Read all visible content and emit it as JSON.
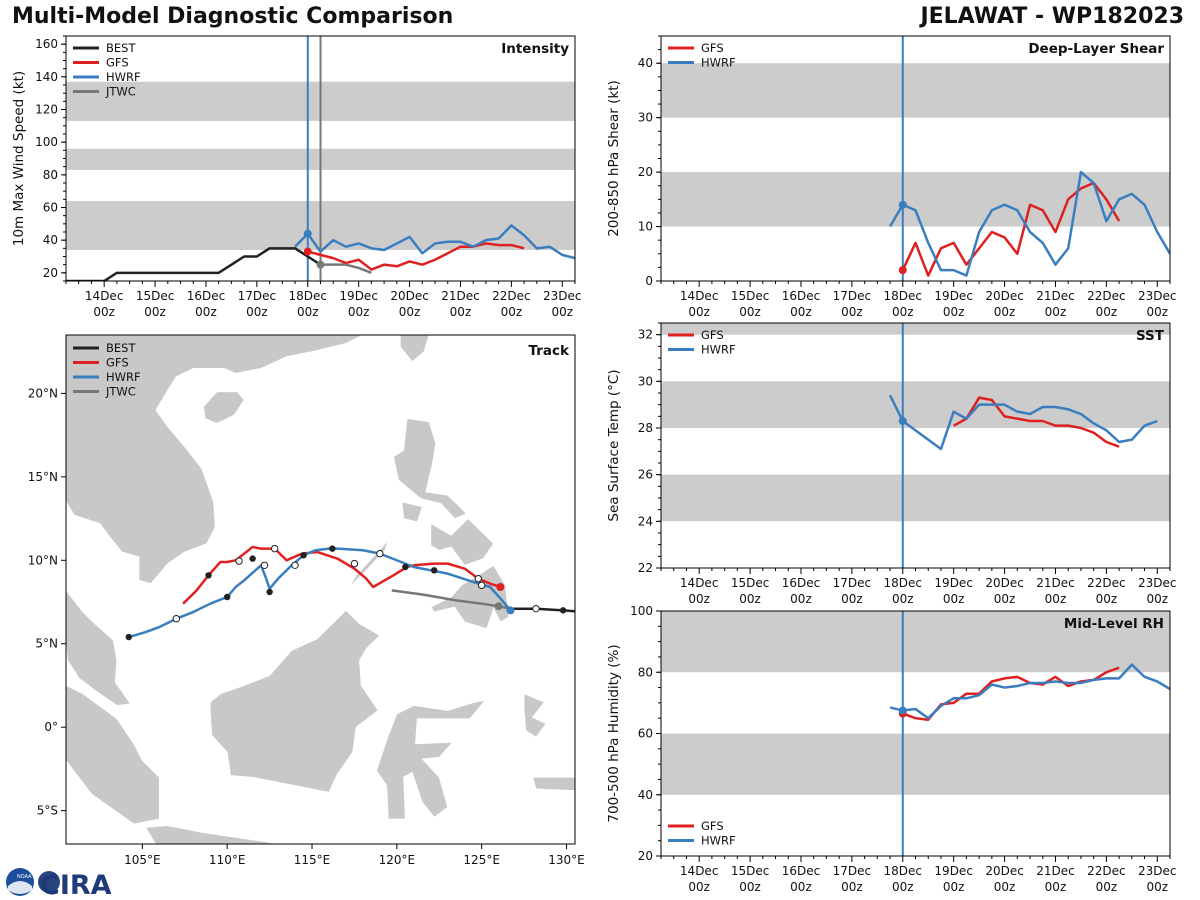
{
  "header": {
    "left_title": "Multi-Model Diagnostic Comparison",
    "right_title": "JELAWAT - WP182023"
  },
  "logo": {
    "text": "CIRA",
    "agency": "NOAA"
  },
  "colors": {
    "best": "#222222",
    "gfs": "#e02020",
    "hwrf": "#3a7ebf",
    "jtwc": "#777777",
    "band": "#cccccc",
    "land": "#c8c8c8",
    "border": "#ffffff"
  },
  "time_axis": {
    "ticks": [
      {
        "day": "14Dec",
        "hour": "00z"
      },
      {
        "day": "15Dec",
        "hour": "00z"
      },
      {
        "day": "16Dec",
        "hour": "00z"
      },
      {
        "day": "17Dec",
        "hour": "00z"
      },
      {
        "day": "18Dec",
        "hour": "00z"
      },
      {
        "day": "19Dec",
        "hour": "00z"
      },
      {
        "day": "20Dec",
        "hour": "00z"
      },
      {
        "day": "21Dec",
        "hour": "00z"
      },
      {
        "day": "22Dec",
        "hour": "00z"
      },
      {
        "day": "23Dec",
        "hour": "00z"
      }
    ]
  },
  "chart_data": [
    {
      "id": "intensity",
      "type": "line",
      "title": "Intensity",
      "ylabel": "10m Max Wind Speed (kt)",
      "xlim_days": [
        -4.75,
        5.25
      ],
      "ylim": [
        15,
        165
      ],
      "yticks": [
        20,
        40,
        60,
        80,
        100,
        120,
        140,
        160
      ],
      "bands": [
        [
          34,
          64
        ],
        [
          83,
          96
        ],
        [
          113,
          137
        ]
      ],
      "init_lines": [
        {
          "x": 0,
          "series": "hwrf"
        },
        {
          "x": 0.25,
          "series": "jtwc"
        }
      ],
      "legend": [
        "BEST",
        "GFS",
        "HWRF",
        "JTWC"
      ],
      "series": [
        {
          "name": "BEST",
          "key": "best",
          "x": [
            -4.75,
            -4.5,
            -4.25,
            -4,
            -3.75,
            -3.5,
            -3.25,
            -3,
            -2.75,
            -2.5,
            -2.25,
            -2,
            -1.75,
            -1.5,
            -1.25,
            -1,
            -0.75,
            -0.5,
            -0.25,
            0,
            0.25
          ],
          "y": [
            15,
            15,
            15,
            15,
            20,
            20,
            20,
            20,
            20,
            20,
            20,
            20,
            20,
            25,
            30,
            30,
            35,
            35,
            35,
            30,
            25
          ]
        },
        {
          "name": "GFS",
          "key": "gfs",
          "x": [
            0,
            0.25,
            0.5,
            0.75,
            1,
            1.25,
            1.5,
            1.75,
            2,
            2.25,
            2.5,
            2.75,
            3,
            3.25,
            3.5,
            3.75,
            4,
            4.25
          ],
          "y": [
            33,
            31,
            29,
            26,
            28,
            22,
            25,
            24,
            27,
            25,
            28,
            32,
            36,
            36,
            38,
            37,
            37,
            35
          ],
          "start_marker": true
        },
        {
          "name": "HWRF",
          "key": "hwrf",
          "x": [
            -0.25,
            0,
            0.25,
            0.5,
            0.75,
            1,
            1.25,
            1.5,
            1.75,
            2,
            2.25,
            2.5,
            2.75,
            3,
            3.25,
            3.5,
            3.75,
            4,
            4.25,
            4.5,
            4.75,
            5,
            5.25
          ],
          "y": [
            36,
            44,
            33,
            40,
            36,
            38,
            35,
            34,
            38,
            42,
            32,
            38,
            39,
            39,
            36,
            40,
            41,
            49,
            43,
            35,
            36,
            31,
            29
          ],
          "start_x": 0
        },
        {
          "name": "JTWC",
          "key": "jtwc",
          "x": [
            0.25,
            0.5,
            0.75,
            1,
            1.25
          ],
          "y": [
            25,
            25,
            25,
            23,
            20
          ],
          "start_marker": true
        }
      ]
    },
    {
      "id": "shear",
      "type": "line",
      "title": "Deep-Layer Shear",
      "ylabel": "200-850 hPa Shear (kt)",
      "xlim_days": [
        -4.75,
        5.25
      ],
      "ylim": [
        0,
        45
      ],
      "yticks": [
        0,
        10,
        20,
        30,
        40
      ],
      "bands": [
        [
          10,
          20
        ],
        [
          30,
          40
        ]
      ],
      "init_lines": [
        {
          "x": 0,
          "series": "hwrf"
        }
      ],
      "legend": [
        "GFS",
        "HWRF"
      ],
      "series": [
        {
          "name": "GFS",
          "key": "gfs",
          "x": [
            0,
            0.25,
            0.5,
            0.75,
            1,
            1.25,
            1.5,
            1.75,
            2,
            2.25,
            2.5,
            2.75,
            3,
            3.25,
            3.5,
            3.75,
            4,
            4.25
          ],
          "y": [
            2,
            7,
            1,
            6,
            7,
            3,
            6,
            9,
            8,
            5,
            14,
            13,
            9,
            15,
            17,
            18,
            15,
            11
          ],
          "start_marker": true
        },
        {
          "name": "HWRF",
          "key": "hwrf",
          "x": [
            -0.25,
            0,
            0.25,
            0.5,
            0.75,
            1,
            1.25,
            1.5,
            1.75,
            2,
            2.25,
            2.5,
            2.75,
            3,
            3.25,
            3.5,
            3.75,
            4,
            4.25,
            4.5,
            4.75,
            5,
            5.25
          ],
          "y": [
            10,
            14,
            13,
            7,
            2,
            2,
            1,
            9,
            13,
            14,
            13,
            9,
            7,
            3,
            6,
            20,
            18,
            11,
            15,
            16,
            14,
            9,
            5
          ],
          "start_x": 0
        }
      ]
    },
    {
      "id": "sst",
      "type": "line",
      "title": "SST",
      "ylabel": "Sea Surface Temp (°C)",
      "xlim_days": [
        -4.75,
        5.25
      ],
      "ylim": [
        22,
        32.5
      ],
      "yticks": [
        22,
        24,
        26,
        28,
        30,
        32
      ],
      "bands": [
        [
          24,
          26
        ],
        [
          28,
          30
        ],
        [
          32,
          34
        ]
      ],
      "init_lines": [
        {
          "x": 0,
          "series": "hwrf"
        }
      ],
      "legend": [
        "GFS",
        "HWRF"
      ],
      "series": [
        {
          "name": "GFS",
          "key": "gfs",
          "x": [
            1,
            1.25,
            1.5,
            1.75,
            2,
            2.25,
            2.5,
            2.75,
            3,
            3.25,
            3.5,
            3.75,
            4,
            4.25
          ],
          "y": [
            28.1,
            28.4,
            29.3,
            29.2,
            28.5,
            28.4,
            28.3,
            28.3,
            28.1,
            28.1,
            28.0,
            27.8,
            27.4,
            27.2
          ]
        },
        {
          "name": "HWRF",
          "key": "hwrf",
          "x": [
            -0.25,
            0,
            0.75,
            1,
            1.25,
            1.5,
            1.75,
            2,
            2.25,
            2.5,
            2.75,
            3,
            3.25,
            3.5,
            3.75,
            4,
            4.25,
            4.5,
            4.75,
            5
          ],
          "y": [
            29.4,
            28.3,
            27.1,
            28.7,
            28.4,
            29.0,
            29.0,
            29.0,
            28.7,
            28.6,
            28.9,
            28.9,
            28.8,
            28.6,
            28.2,
            27.9,
            27.4,
            27.5,
            28.1,
            28.3
          ],
          "marker_at": 0
        }
      ]
    },
    {
      "id": "rh",
      "type": "line",
      "title": "Mid-Level RH",
      "ylabel": "700-500 hPa Humidity (%)",
      "xlim_days": [
        -4.75,
        5.25
      ],
      "ylim": [
        20,
        100
      ],
      "yticks": [
        20,
        40,
        60,
        80,
        100
      ],
      "bands": [
        [
          40,
          60
        ],
        [
          80,
          100
        ]
      ],
      "init_lines": [
        {
          "x": 0,
          "series": "hwrf"
        }
      ],
      "legend": [
        "GFS",
        "HWRF"
      ],
      "series": [
        {
          "name": "GFS",
          "key": "gfs",
          "x": [
            0,
            0.25,
            0.5,
            0.75,
            1,
            1.25,
            1.5,
            1.75,
            2,
            2.25,
            2.5,
            2.75,
            3,
            3.25,
            3.5,
            3.75,
            4,
            4.25
          ],
          "y": [
            66.5,
            65,
            64.5,
            69.5,
            70,
            73,
            73,
            77,
            78,
            78.5,
            76.5,
            76,
            78.5,
            75.5,
            77,
            77.5,
            80,
            81.5
          ],
          "start_marker": true
        },
        {
          "name": "HWRF",
          "key": "hwrf",
          "x": [
            -0.25,
            0,
            0.25,
            0.5,
            0.75,
            1,
            1.25,
            1.5,
            1.75,
            2,
            2.25,
            2.5,
            2.75,
            3,
            3.25,
            3.5,
            3.75,
            4,
            4.25,
            4.5,
            4.75,
            5,
            5.25
          ],
          "y": [
            68.5,
            67.5,
            68,
            65,
            69,
            71.5,
            71.5,
            72.5,
            76,
            75,
            75.5,
            76.5,
            76.5,
            77,
            76.5,
            76.5,
            77.5,
            78,
            78,
            82.5,
            78.5,
            77,
            74.5
          ],
          "start_x": 0
        }
      ]
    },
    {
      "id": "track",
      "type": "scatter",
      "title": "Track",
      "xlim": [
        100.5,
        130.5
      ],
      "ylim": [
        -7,
        23.5
      ],
      "xticks": [
        {
          "v": 105,
          "label": "105°E"
        },
        {
          "v": 110,
          "label": "110°E"
        },
        {
          "v": 115,
          "label": "115°E"
        },
        {
          "v": 120,
          "label": "120°E"
        },
        {
          "v": 125,
          "label": "125°E"
        },
        {
          "v": 130,
          "label": "130°E"
        }
      ],
      "yticks": [
        {
          "v": -5,
          "label": "5°S"
        },
        {
          "v": 0,
          "label": "0°"
        },
        {
          "v": 5,
          "label": "5°N"
        },
        {
          "v": 10,
          "label": "10°N"
        },
        {
          "v": 15,
          "label": "15°N"
        },
        {
          "v": 20,
          "label": "20°N"
        }
      ],
      "legend": [
        "BEST",
        "GFS",
        "HWRF",
        "JTWC"
      ],
      "series": [
        {
          "name": "BEST",
          "key": "best",
          "lon": [
            131.5,
            130.5,
            129.8,
            128.2,
            126.7
          ],
          "lat": [
            6.9,
            6.95,
            7.0,
            7.1,
            7.1
          ],
          "dots": [
            [
              129.8,
              7.0,
              "filled"
            ],
            [
              128.2,
              7.1,
              "open"
            ]
          ]
        },
        {
          "name": "JTWC",
          "key": "jtwc",
          "lon": [
            119.7,
            121.5,
            123.5,
            125.0,
            126.0,
            126.7
          ],
          "lat": [
            8.2,
            7.95,
            7.6,
            7.4,
            7.25,
            7.1
          ],
          "dots": [
            [
              126.0,
              7.25,
              "gray"
            ]
          ]
        },
        {
          "name": "GFS",
          "key": "gfs",
          "lon": [
            126.1,
            125.5,
            124.8,
            124.0,
            123.0,
            122.2,
            121.0,
            120.6,
            119.8,
            118.6,
            118.2,
            117.5,
            116.5,
            115.3,
            114.4,
            113.5,
            112.8,
            112.0,
            111.5,
            110.5,
            110.0,
            109.6,
            108.9,
            108.2,
            107.4
          ],
          "lat": [
            8.4,
            8.6,
            8.9,
            9.5,
            9.8,
            9.8,
            9.7,
            9.6,
            9.1,
            8.4,
            8.9,
            9.5,
            10.1,
            10.5,
            10.4,
            10.0,
            10.7,
            10.7,
            10.8,
            10.0,
            9.9,
            9.9,
            9.1,
            8.2,
            7.4
          ],
          "dots": [
            [
              126.1,
              8.4,
              "red"
            ],
            [
              124.8,
              8.9,
              "open"
            ],
            [
              122.2,
              9.4,
              "filled"
            ],
            [
              117.5,
              9.8,
              "open"
            ],
            [
              114.5,
              10.3,
              "filled"
            ],
            [
              112.8,
              10.7,
              "open"
            ],
            [
              111.5,
              10.1,
              "filled"
            ],
            [
              110.7,
              9.95,
              "open"
            ],
            [
              108.9,
              9.1,
              "filled"
            ]
          ]
        },
        {
          "name": "HWRF",
          "key": "hwrf",
          "lon": [
            126.7,
            126.2,
            125.5,
            124.5,
            123.0,
            122.0,
            121.0,
            120.5,
            119.0,
            118.0,
            116.5,
            116.0,
            115.2,
            114.5,
            113.8,
            113.0,
            112.5,
            112.3,
            112.0,
            111.0,
            110.5,
            110.0,
            109.0,
            108.0,
            107.0,
            106.0,
            105.2,
            104.2
          ],
          "lat": [
            7.0,
            7.6,
            8.4,
            8.7,
            9.2,
            9.4,
            9.6,
            9.8,
            10.4,
            10.6,
            10.7,
            10.7,
            10.6,
            10.3,
            9.7,
            8.9,
            8.3,
            8.9,
            9.7,
            8.8,
            8.4,
            7.8,
            7.4,
            6.9,
            6.5,
            6.0,
            5.7,
            5.4
          ],
          "dots": [
            [
              126.7,
              7.0,
              "blue"
            ],
            [
              125.0,
              8.5,
              "open"
            ],
            [
              120.5,
              9.6,
              "filled"
            ],
            [
              119.0,
              10.4,
              "open"
            ],
            [
              116.2,
              10.7,
              "filled"
            ],
            [
              114.0,
              9.7,
              "open"
            ],
            [
              112.5,
              8.1,
              "filled"
            ],
            [
              112.2,
              9.7,
              "open"
            ],
            [
              110.0,
              7.8,
              "filled"
            ],
            [
              107.0,
              6.5,
              "open"
            ],
            [
              104.2,
              5.4,
              "filled"
            ]
          ]
        }
      ]
    }
  ]
}
